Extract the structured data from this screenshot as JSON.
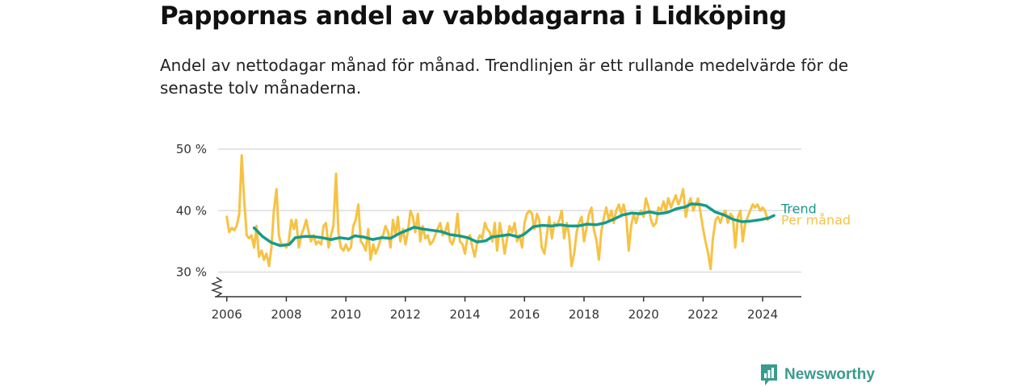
{
  "title": "Pappornas andel av vabbdagarna i Lidköping",
  "subtitle": "Andel av nettodagar månad för månad. Trendlinjen är ett rullande medelvärde för de senaste tolv månaderna.",
  "brand": "Newsworthy",
  "chart_data": {
    "type": "line",
    "ylim": [
      26,
      50
    ],
    "xlim": [
      2005.6,
      2025.3
    ],
    "y_ticks": [
      {
        "v": 30,
        "label": "30 %"
      },
      {
        "v": 40,
        "label": "40 %"
      },
      {
        "v": 50,
        "label": "50 %"
      }
    ],
    "x_ticks": [
      {
        "v": 2006,
        "label": "2006"
      },
      {
        "v": 2008,
        "label": "2008"
      },
      {
        "v": 2010,
        "label": "2010"
      },
      {
        "v": 2012,
        "label": "2012"
      },
      {
        "v": 2014,
        "label": "2014"
      },
      {
        "v": 2016,
        "label": "2016"
      },
      {
        "v": 2018,
        "label": "2018"
      },
      {
        "v": 2020,
        "label": "2020"
      },
      {
        "v": 2022,
        "label": "2022"
      },
      {
        "v": 2024,
        "label": "2024"
      }
    ],
    "axis_break": true,
    "grid": true,
    "series": [
      {
        "name": "Per månad",
        "color": "#f7c244",
        "points": [
          [
            2006.0,
            39.0
          ],
          [
            2006.08,
            36.5
          ],
          [
            2006.17,
            37.2
          ],
          [
            2006.25,
            36.8
          ],
          [
            2006.33,
            37.5
          ],
          [
            2006.42,
            39.5
          ],
          [
            2006.5,
            49.0
          ],
          [
            2006.58,
            42.0
          ],
          [
            2006.67,
            36.0
          ],
          [
            2006.75,
            35.5
          ],
          [
            2006.83,
            36.0
          ],
          [
            2006.92,
            34.0
          ],
          [
            2007.0,
            37.5
          ],
          [
            2007.08,
            32.5
          ],
          [
            2007.17,
            33.5
          ],
          [
            2007.25,
            32.0
          ],
          [
            2007.33,
            33.0
          ],
          [
            2007.42,
            31.0
          ],
          [
            2007.5,
            34.0
          ],
          [
            2007.58,
            40.0
          ],
          [
            2007.67,
            43.5
          ],
          [
            2007.75,
            36.0
          ],
          [
            2007.83,
            34.5
          ],
          [
            2007.92,
            34.5
          ],
          [
            2008.0,
            34.0
          ],
          [
            2008.08,
            35.0
          ],
          [
            2008.17,
            38.5
          ],
          [
            2008.25,
            37.0
          ],
          [
            2008.33,
            38.5
          ],
          [
            2008.42,
            34.0
          ],
          [
            2008.5,
            36.0
          ],
          [
            2008.58,
            37.0
          ],
          [
            2008.67,
            38.5
          ],
          [
            2008.75,
            36.5
          ],
          [
            2008.83,
            35.0
          ],
          [
            2008.92,
            36.0
          ],
          [
            2009.0,
            34.5
          ],
          [
            2009.08,
            35.0
          ],
          [
            2009.17,
            34.5
          ],
          [
            2009.25,
            37.5
          ],
          [
            2009.33,
            38.0
          ],
          [
            2009.42,
            34.0
          ],
          [
            2009.5,
            36.0
          ],
          [
            2009.58,
            37.5
          ],
          [
            2009.67,
            46.0
          ],
          [
            2009.75,
            36.5
          ],
          [
            2009.83,
            34.0
          ],
          [
            2009.92,
            33.5
          ],
          [
            2010.0,
            34.5
          ],
          [
            2010.08,
            33.5
          ],
          [
            2010.17,
            34.0
          ],
          [
            2010.25,
            37.5
          ],
          [
            2010.33,
            38.5
          ],
          [
            2010.42,
            41.0
          ],
          [
            2010.5,
            35.0
          ],
          [
            2010.58,
            34.5
          ],
          [
            2010.67,
            33.5
          ],
          [
            2010.75,
            37.0
          ],
          [
            2010.83,
            32.0
          ],
          [
            2010.92,
            34.5
          ],
          [
            2011.0,
            33.0
          ],
          [
            2011.08,
            34.0
          ],
          [
            2011.17,
            35.5
          ],
          [
            2011.25,
            36.0
          ],
          [
            2011.33,
            37.5
          ],
          [
            2011.42,
            36.5
          ],
          [
            2011.5,
            34.0
          ],
          [
            2011.58,
            38.5
          ],
          [
            2011.67,
            36.0
          ],
          [
            2011.75,
            39.0
          ],
          [
            2011.83,
            35.0
          ],
          [
            2011.92,
            37.0
          ],
          [
            2012.0,
            34.5
          ],
          [
            2012.08,
            36.5
          ],
          [
            2012.17,
            40.0
          ],
          [
            2012.25,
            39.0
          ],
          [
            2012.33,
            36.5
          ],
          [
            2012.42,
            39.5
          ],
          [
            2012.5,
            35.0
          ],
          [
            2012.58,
            37.5
          ],
          [
            2012.67,
            35.5
          ],
          [
            2012.75,
            36.0
          ],
          [
            2012.83,
            34.5
          ],
          [
            2012.92,
            35.0
          ],
          [
            2013.0,
            36.0
          ],
          [
            2013.08,
            37.0
          ],
          [
            2013.17,
            38.0
          ],
          [
            2013.25,
            36.0
          ],
          [
            2013.33,
            36.5
          ],
          [
            2013.42,
            38.0
          ],
          [
            2013.5,
            35.0
          ],
          [
            2013.58,
            34.5
          ],
          [
            2013.67,
            36.0
          ],
          [
            2013.75,
            39.5
          ],
          [
            2013.83,
            35.0
          ],
          [
            2013.92,
            34.5
          ],
          [
            2014.0,
            33.0
          ],
          [
            2014.08,
            35.5
          ],
          [
            2014.17,
            36.0
          ],
          [
            2014.25,
            34.0
          ],
          [
            2014.33,
            32.5
          ],
          [
            2014.42,
            35.0
          ],
          [
            2014.5,
            36.0
          ],
          [
            2014.58,
            35.5
          ],
          [
            2014.67,
            38.0
          ],
          [
            2014.75,
            37.0
          ],
          [
            2014.83,
            36.5
          ],
          [
            2014.92,
            35.0
          ],
          [
            2015.0,
            38.0
          ],
          [
            2015.08,
            33.5
          ],
          [
            2015.17,
            38.0
          ],
          [
            2015.25,
            36.0
          ],
          [
            2015.33,
            33.0
          ],
          [
            2015.42,
            35.5
          ],
          [
            2015.5,
            37.5
          ],
          [
            2015.58,
            36.5
          ],
          [
            2015.67,
            38.0
          ],
          [
            2015.75,
            35.0
          ],
          [
            2015.83,
            36.0
          ],
          [
            2015.92,
            34.0
          ],
          [
            2016.0,
            38.0
          ],
          [
            2016.08,
            39.5
          ],
          [
            2016.17,
            40.0
          ],
          [
            2016.25,
            39.5
          ],
          [
            2016.33,
            37.0
          ],
          [
            2016.42,
            39.5
          ],
          [
            2016.5,
            38.5
          ],
          [
            2016.58,
            34.0
          ],
          [
            2016.67,
            33.0
          ],
          [
            2016.75,
            36.0
          ],
          [
            2016.83,
            39.0
          ],
          [
            2016.92,
            35.5
          ],
          [
            2017.0,
            38.0
          ],
          [
            2017.08,
            37.5
          ],
          [
            2017.17,
            38.5
          ],
          [
            2017.25,
            40.0
          ],
          [
            2017.33,
            35.5
          ],
          [
            2017.42,
            38.0
          ],
          [
            2017.5,
            36.0
          ],
          [
            2017.58,
            31.0
          ],
          [
            2017.67,
            33.0
          ],
          [
            2017.75,
            36.5
          ],
          [
            2017.83,
            38.0
          ],
          [
            2017.92,
            39.0
          ],
          [
            2018.0,
            35.0
          ],
          [
            2018.08,
            37.0
          ],
          [
            2018.17,
            39.5
          ],
          [
            2018.25,
            40.5
          ],
          [
            2018.33,
            37.0
          ],
          [
            2018.42,
            35.0
          ],
          [
            2018.5,
            32.0
          ],
          [
            2018.58,
            36.5
          ],
          [
            2018.67,
            39.0
          ],
          [
            2018.75,
            40.5
          ],
          [
            2018.83,
            38.5
          ],
          [
            2018.92,
            40.0
          ],
          [
            2019.0,
            38.0
          ],
          [
            2019.08,
            40.0
          ],
          [
            2019.17,
            41.0
          ],
          [
            2019.25,
            39.5
          ],
          [
            2019.33,
            41.0
          ],
          [
            2019.42,
            39.0
          ],
          [
            2019.5,
            33.5
          ],
          [
            2019.58,
            37.5
          ],
          [
            2019.67,
            39.5
          ],
          [
            2019.75,
            38.0
          ],
          [
            2019.83,
            39.5
          ],
          [
            2019.92,
            40.0
          ],
          [
            2020.0,
            39.0
          ],
          [
            2020.08,
            42.0
          ],
          [
            2020.17,
            40.5
          ],
          [
            2020.25,
            38.5
          ],
          [
            2020.33,
            37.5
          ],
          [
            2020.42,
            38.0
          ],
          [
            2020.5,
            40.5
          ],
          [
            2020.58,
            40.0
          ],
          [
            2020.67,
            41.5
          ],
          [
            2020.75,
            40.0
          ],
          [
            2020.83,
            42.0
          ],
          [
            2020.92,
            40.5
          ],
          [
            2021.0,
            41.5
          ],
          [
            2021.08,
            42.5
          ],
          [
            2021.17,
            41.0
          ],
          [
            2021.25,
            42.0
          ],
          [
            2021.33,
            43.5
          ],
          [
            2021.42,
            39.0
          ],
          [
            2021.5,
            41.0
          ],
          [
            2021.58,
            42.0
          ],
          [
            2021.67,
            40.0
          ],
          [
            2021.75,
            41.0
          ],
          [
            2021.83,
            42.0
          ],
          [
            2021.92,
            39.5
          ],
          [
            2022.0,
            37.0
          ],
          [
            2022.08,
            35.0
          ],
          [
            2022.17,
            33.0
          ],
          [
            2022.25,
            30.5
          ],
          [
            2022.33,
            35.5
          ],
          [
            2022.42,
            38.5
          ],
          [
            2022.5,
            39.0
          ],
          [
            2022.58,
            38.0
          ],
          [
            2022.67,
            39.5
          ],
          [
            2022.75,
            40.0
          ],
          [
            2022.83,
            38.0
          ],
          [
            2022.92,
            39.5
          ],
          [
            2023.0,
            39.0
          ],
          [
            2023.08,
            34.0
          ],
          [
            2023.17,
            39.0
          ],
          [
            2023.25,
            40.0
          ],
          [
            2023.33,
            35.0
          ],
          [
            2023.42,
            38.0
          ],
          [
            2023.5,
            39.0
          ],
          [
            2023.58,
            40.0
          ],
          [
            2023.67,
            41.0
          ],
          [
            2023.75,
            40.5
          ],
          [
            2023.83,
            41.0
          ],
          [
            2023.92,
            40.0
          ],
          [
            2024.0,
            40.5
          ],
          [
            2024.08,
            40.0
          ],
          [
            2024.17,
            38.5
          ]
        ]
      },
      {
        "name": "Trend",
        "color": "#159b8a",
        "points": [
          [
            2006.92,
            37.2
          ],
          [
            2007.2,
            35.8
          ],
          [
            2007.5,
            34.8
          ],
          [
            2007.8,
            34.3
          ],
          [
            2008.1,
            34.5
          ],
          [
            2008.3,
            35.6
          ],
          [
            2008.6,
            35.8
          ],
          [
            2008.9,
            35.8
          ],
          [
            2009.2,
            35.6
          ],
          [
            2009.5,
            35.3
          ],
          [
            2009.8,
            35.6
          ],
          [
            2010.1,
            35.4
          ],
          [
            2010.3,
            35.9
          ],
          [
            2010.6,
            35.7
          ],
          [
            2010.9,
            35.3
          ],
          [
            2011.2,
            35.6
          ],
          [
            2011.5,
            35.5
          ],
          [
            2011.8,
            36.3
          ],
          [
            2012.1,
            36.9
          ],
          [
            2012.3,
            37.3
          ],
          [
            2012.6,
            37.0
          ],
          [
            2012.9,
            36.8
          ],
          [
            2013.2,
            36.6
          ],
          [
            2013.5,
            36.1
          ],
          [
            2013.8,
            35.9
          ],
          [
            2014.1,
            35.6
          ],
          [
            2014.4,
            34.9
          ],
          [
            2014.7,
            35.1
          ],
          [
            2014.9,
            35.7
          ],
          [
            2015.2,
            35.9
          ],
          [
            2015.5,
            36.1
          ],
          [
            2015.8,
            35.7
          ],
          [
            2016.0,
            36.2
          ],
          [
            2016.3,
            37.4
          ],
          [
            2016.6,
            37.6
          ],
          [
            2016.9,
            37.5
          ],
          [
            2017.2,
            37.7
          ],
          [
            2017.5,
            37.5
          ],
          [
            2017.8,
            37.5
          ],
          [
            2018.1,
            37.8
          ],
          [
            2018.4,
            37.7
          ],
          [
            2018.7,
            38.0
          ],
          [
            2019.0,
            38.6
          ],
          [
            2019.3,
            39.3
          ],
          [
            2019.6,
            39.6
          ],
          [
            2019.9,
            39.5
          ],
          [
            2020.2,
            39.8
          ],
          [
            2020.5,
            39.5
          ],
          [
            2020.8,
            39.7
          ],
          [
            2021.1,
            40.3
          ],
          [
            2021.4,
            40.6
          ],
          [
            2021.6,
            41.1
          ],
          [
            2021.9,
            41.0
          ],
          [
            2022.1,
            40.8
          ],
          [
            2022.4,
            39.8
          ],
          [
            2022.7,
            39.3
          ],
          [
            2023.0,
            38.6
          ],
          [
            2023.3,
            38.2
          ],
          [
            2023.6,
            38.3
          ],
          [
            2023.9,
            38.5
          ],
          [
            2024.2,
            38.8
          ],
          [
            2024.38,
            39.2
          ]
        ]
      }
    ]
  }
}
